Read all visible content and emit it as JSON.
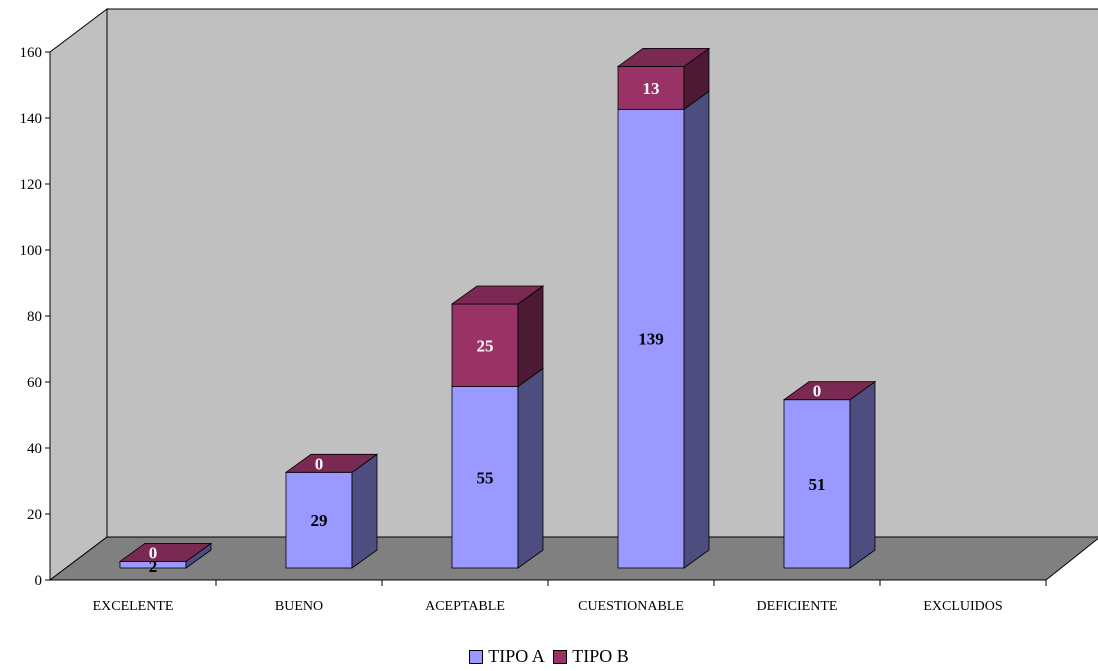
{
  "chart_data": {
    "type": "bar",
    "stacked": true,
    "three_d": true,
    "categories": [
      "EXCELENTE",
      "BUENO",
      "ACEPTABLE",
      "CUESTIONABLE",
      "DEFICIENTE",
      "EXCLUIDOS"
    ],
    "series": [
      {
        "name": "TIPO A",
        "values": [
          2,
          29,
          55,
          139,
          51,
          null
        ],
        "labels": [
          "2",
          "29",
          "55",
          "139",
          "51",
          ""
        ],
        "color": "#9999FF",
        "side_color": "#4D4D80",
        "top_color": "#7A7ACC",
        "label_color": "#000000"
      },
      {
        "name": "TIPO B",
        "values": [
          0,
          0,
          25,
          13,
          0,
          null
        ],
        "labels": [
          "0",
          "0",
          "25",
          "13",
          "0",
          ""
        ],
        "color": "#993366",
        "side_color": "#4D1A33",
        "top_color": "#7A2952",
        "label_color": "#FFFFFF"
      }
    ],
    "ylim": [
      0,
      160
    ],
    "yticks": [
      "0",
      "20",
      "40",
      "60",
      "80",
      "100",
      "120",
      "140",
      "160"
    ],
    "grid": false,
    "legend_position": "bottom",
    "wall_color": "#C0C0C0",
    "floor_color": "#808080",
    "title": "",
    "xlabel": "",
    "ylabel": ""
  }
}
